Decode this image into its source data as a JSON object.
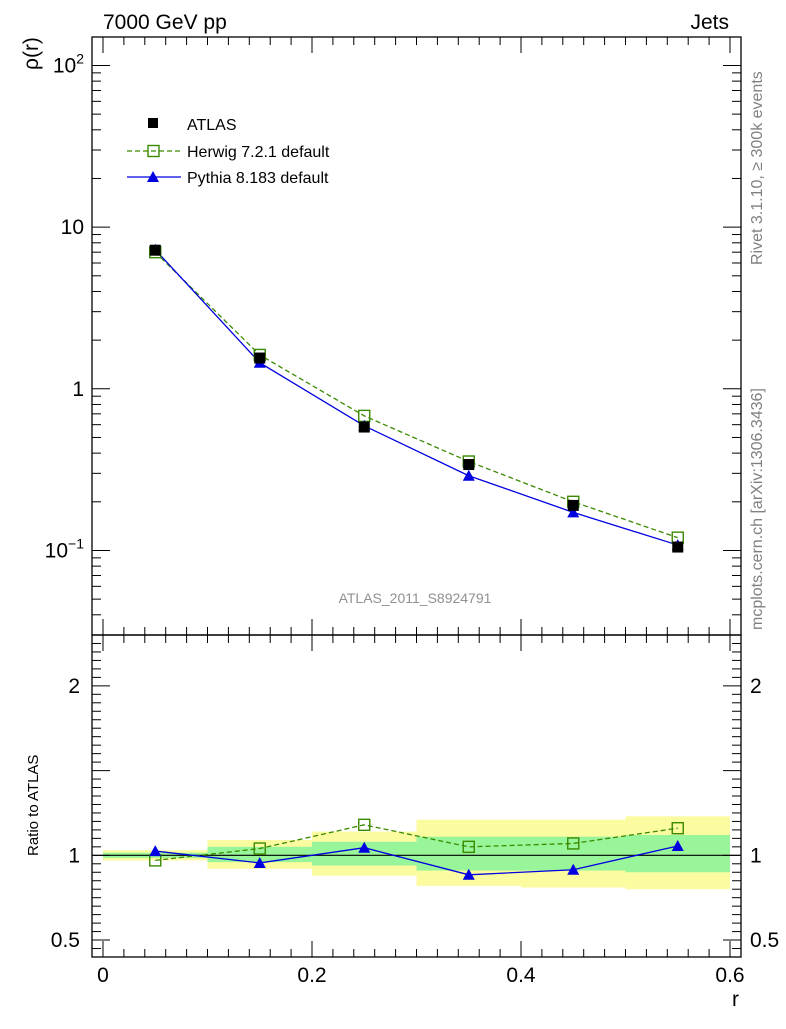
{
  "chart_data": {
    "type": "line",
    "header_left": "7000 GeV pp",
    "header_right": "Jets",
    "side_label_top": "Rivet 3.1.10, ≥ 300k events",
    "side_label_bottom": "mcplots.cern.ch [arXiv:1306.3436]",
    "watermark": "ATLAS_2011_S8924791",
    "xlabel": "r",
    "ylabel": "ρ(r)",
    "ratio_ylabel": "Ratio to ATLAS",
    "xlim": [
      0,
      0.6
    ],
    "ylim": [
      0.03,
      150
    ],
    "ratio_ylim": [
      0.4,
      2.3
    ],
    "x_ticks": [
      {
        "v": 0,
        "label": "0"
      },
      {
        "v": 0.2,
        "label": "0.2"
      },
      {
        "v": 0.4,
        "label": "0.4"
      },
      {
        "v": 0.6,
        "label": "0.6"
      }
    ],
    "y_ticks": [
      {
        "v": 0.1,
        "base": "10",
        "exp": "−1"
      },
      {
        "v": 1,
        "base": "1",
        "exp": ""
      },
      {
        "v": 10,
        "base": "10",
        "exp": ""
      },
      {
        "v": 100,
        "base": "10",
        "exp": "2"
      }
    ],
    "ratio_ticks": [
      {
        "v": 0.5,
        "label": "0.5"
      },
      {
        "v": 1,
        "label": "1"
      },
      {
        "v": 2,
        "label": "2"
      }
    ],
    "bins": [
      [
        0,
        0.1
      ],
      [
        0.1,
        0.2
      ],
      [
        0.2,
        0.3
      ],
      [
        0.3,
        0.4
      ],
      [
        0.4,
        0.5
      ],
      [
        0.5,
        0.6
      ]
    ],
    "x": [
      0.05,
      0.15,
      0.25,
      0.35,
      0.45,
      0.55
    ],
    "band_inner": [
      [
        0.985,
        1.015
      ],
      [
        0.96,
        1.05
      ],
      [
        0.94,
        1.08
      ],
      [
        0.91,
        1.11
      ],
      [
        0.91,
        1.11
      ],
      [
        0.9,
        1.12
      ]
    ],
    "band_outer": [
      [
        0.97,
        1.03
      ],
      [
        0.92,
        1.09
      ],
      [
        0.88,
        1.14
      ],
      [
        0.82,
        1.21
      ],
      [
        0.81,
        1.21
      ],
      [
        0.8,
        1.23
      ]
    ],
    "series": [
      {
        "name": "ATLAS",
        "color": "#000000",
        "values": [
          7.2,
          1.55,
          0.58,
          0.34,
          0.19,
          0.105
        ],
        "ratio": [
          1,
          1,
          1,
          1,
          1,
          1
        ]
      },
      {
        "name": "Herwig 7.2.1 default",
        "color": "#3a8a00",
        "values": [
          7.0,
          1.62,
          0.68,
          0.355,
          0.2,
          0.12
        ],
        "ratio": [
          0.97,
          1.04,
          1.18,
          1.05,
          1.07,
          1.16
        ]
      },
      {
        "name": "Pythia 8.183 default",
        "color": "#0000e0",
        "values": [
          7.25,
          1.45,
          0.59,
          0.29,
          0.172,
          0.108
        ],
        "ratio": [
          1.025,
          0.955,
          1.045,
          0.885,
          0.915,
          1.055
        ]
      }
    ],
    "colors": {
      "band_inner": "#99f599",
      "band_outer": "#fbfba0",
      "axis": "#000000",
      "side_text": "#808080"
    }
  }
}
